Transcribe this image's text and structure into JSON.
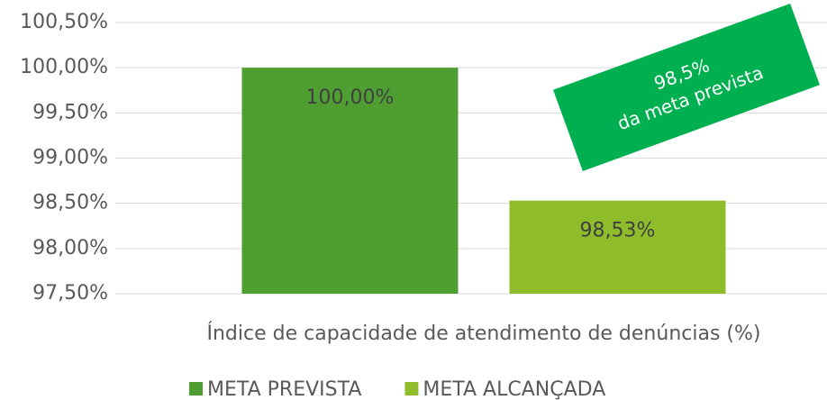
{
  "chart_data": {
    "type": "bar",
    "categories": [
      "Índice de capacidade de atendimento de denúncias  (%)"
    ],
    "series": [
      {
        "name": "META PREVISTA",
        "color": "#4e9e32",
        "values": [
          100
        ],
        "value_labels": [
          "100,00%"
        ]
      },
      {
        "name": "META ALCANÇADA",
        "color": "#8fbc2b",
        "values": [
          98.53
        ],
        "value_labels": [
          "98,53%"
        ]
      }
    ],
    "ylim": [
      97.5,
      100.5
    ],
    "yticks": [
      {
        "value": 97.5,
        "label": "97,50%"
      },
      {
        "value": 98,
        "label": "98,00%"
      },
      {
        "value": 98.5,
        "label": "98,50%"
      },
      {
        "value": 99,
        "label": "99,00%"
      },
      {
        "value": 99.5,
        "label": "99,50%"
      },
      {
        "value": 100,
        "label": "100,00%"
      },
      {
        "value": 100.5,
        "label": "100,50%"
      }
    ],
    "grid": true,
    "legend": "bottom",
    "annotations": [
      "98,5%",
      "da meta prevista"
    ],
    "annotation_color": "#00b050"
  }
}
